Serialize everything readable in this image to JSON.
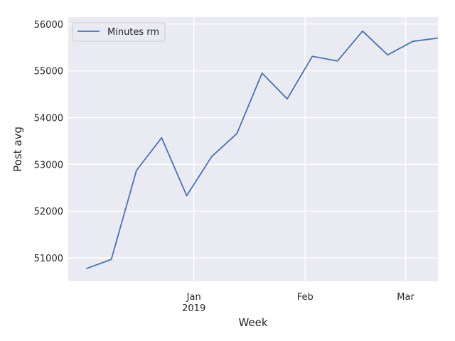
{
  "chart_data": {
    "type": "line",
    "title": "",
    "xlabel": "Week",
    "ylabel": "Post avg",
    "x": [
      "2018-12-02",
      "2018-12-09",
      "2018-12-16",
      "2018-12-23",
      "2018-12-30",
      "2019-01-06",
      "2019-01-13",
      "2019-01-20",
      "2019-01-27",
      "2019-02-03",
      "2019-02-10",
      "2019-02-17",
      "2019-02-24",
      "2019-03-03",
      "2019-03-10"
    ],
    "series": [
      {
        "name": "Minutes rm",
        "color": "#4c72b0",
        "values": [
          50770,
          50970,
          52870,
          53570,
          52330,
          53170,
          53660,
          54950,
          54400,
          55310,
          55210,
          55850,
          55340,
          55630,
          55700
        ]
      }
    ],
    "xlim": [
      "2018-11-27",
      "2019-03-10"
    ],
    "ylim": [
      50500,
      56150
    ],
    "yticks": [
      51000,
      52000,
      53000,
      54000,
      55000,
      56000
    ],
    "ytick_labels": [
      "51000",
      "52000",
      "53000",
      "54000",
      "55000",
      "56000"
    ],
    "xticks": [
      {
        "date": "2019-01-01",
        "label": "Jan",
        "sublabel": "2019"
      },
      {
        "date": "2019-02-01",
        "label": "Feb",
        "sublabel": ""
      },
      {
        "date": "2019-03-01",
        "label": "Mar",
        "sublabel": ""
      }
    ],
    "grid": true,
    "legend": "upper-left",
    "background": "#eaeaf2",
    "grid_color": "#ffffff"
  }
}
